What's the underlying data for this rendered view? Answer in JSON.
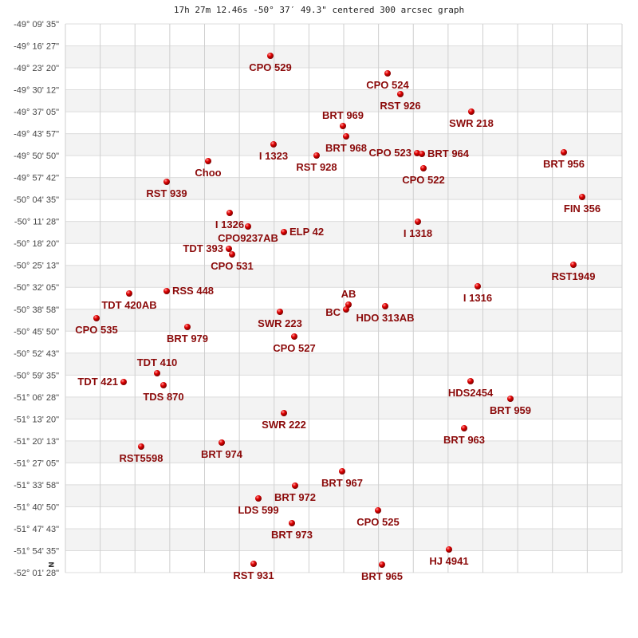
{
  "chart_data": {
    "type": "scatter",
    "title": "17h 27m 12.46s -50° 37′ 49.3\" centered 300 arcsec graph",
    "xlabel": "",
    "ylabel": "",
    "north_marker": "N",
    "grid": true,
    "x_units": "arcmin offset from center (east-west)",
    "y_units": "arcmin offset from center (north positive)",
    "y_tick_labels": [
      "-49° 09' 35\"",
      "-49° 16' 27\"",
      "-49° 23' 20\"",
      "-49° 30' 12\"",
      "-49° 37' 05\"",
      "-49° 43' 57\"",
      "-49° 50' 50\"",
      "-49° 57' 42\"",
      "-50° 04' 35\"",
      "-50° 11' 28\"",
      "-50° 18' 20\"",
      "-50° 25' 13\"",
      "-50° 32' 05\"",
      "-50° 38' 58\"",
      "-50° 45' 50\"",
      "-50° 52' 43\"",
      "-50° 59' 35\"",
      "-51° 06' 28\"",
      "-51° 13' 20\"",
      "-51° 20' 13\"",
      "-51° 27' 05\"",
      "-51° 33' 58\"",
      "-51° 40' 50\"",
      "-51° 47' 43\"",
      "-51° 54' 35\"",
      "-52° 01' 28\""
    ],
    "point_color": "#e00000",
    "label_color": "#8b0a0a",
    "points": [
      {
        "name": "CPO 529",
        "x": -23,
        "y": 78.25
      },
      {
        "name": "CPO 524",
        "x": 13.75,
        "y": 72.75
      },
      {
        "name": "RST 926",
        "x": 17.75,
        "y": 66.25
      },
      {
        "name": "SWR 218",
        "x": 40,
        "y": 60.75
      },
      {
        "name": "BRT 969",
        "x": -0.25,
        "y": 56.25
      },
      {
        "name": "BRT 968",
        "x": 0.75,
        "y": 53
      },
      {
        "name": "I  1323",
        "x": -22,
        "y": 50.5
      },
      {
        "name": "RST 928",
        "x": -8.5,
        "y": 47
      },
      {
        "name": "Choo",
        "x": -42.5,
        "y": 45.25
      },
      {
        "name": "CPO 523",
        "x": 23,
        "y": 47.75
      },
      {
        "name": "BRT 964",
        "x": 24.5,
        "y": 47.5
      },
      {
        "name": "BRT 956",
        "x": 69,
        "y": 48
      },
      {
        "name": "CPO 522",
        "x": 25,
        "y": 43
      },
      {
        "name": "RST 939",
        "x": -55.5,
        "y": 38.75
      },
      {
        "name": "FIN 356",
        "x": 74.75,
        "y": 34
      },
      {
        "name": "I  1326",
        "x": -35.75,
        "y": 29
      },
      {
        "name": "CPO9237AB",
        "x": -30,
        "y": 24.75
      },
      {
        "name": "ELP  42",
        "x": -18.75,
        "y": 23
      },
      {
        "name": "I  1318",
        "x": 23.25,
        "y": 26.25
      },
      {
        "name": "TDT 393",
        "x": -36,
        "y": 17.75
      },
      {
        "name": "CPO 531",
        "x": -35,
        "y": 16
      },
      {
        "name": "RST1949",
        "x": 72,
        "y": 12.75
      },
      {
        "name": "I  1316",
        "x": 42,
        "y": 6
      },
      {
        "name": "TDT 420AB",
        "x": -67.25,
        "y": 3.75
      },
      {
        "name": "RSS 448",
        "x": -55.5,
        "y": 4.5
      },
      {
        "name": "CPO 535",
        "x": -77.5,
        "y": -4
      },
      {
        "name": "BRT 979",
        "x": -49,
        "y": -6.75
      },
      {
        "name": "SWR 223",
        "x": -20,
        "y": -2
      },
      {
        "name": "CPO 527",
        "x": -15.5,
        "y": -9.75
      },
      {
        "name": "AB",
        "x": 1.5,
        "y": 0.25
      },
      {
        "name": "BC",
        "x": 0.75,
        "y": -1.25
      },
      {
        "name": "HDO 313AB",
        "x": 13,
        "y": -0.25
      },
      {
        "name": "TDT 421",
        "x": -69,
        "y": -24
      },
      {
        "name": "TDT 410",
        "x": -58.5,
        "y": -21.25
      },
      {
        "name": "TDS 870",
        "x": -56.5,
        "y": -25
      },
      {
        "name": "HDS2454",
        "x": 39.75,
        "y": -23.75
      },
      {
        "name": "BRT 959",
        "x": 52.25,
        "y": -29.25
      },
      {
        "name": "SWR 222",
        "x": -18.75,
        "y": -33.75
      },
      {
        "name": "BRT 963",
        "x": 37.75,
        "y": -38.5
      },
      {
        "name": "BRT 974",
        "x": -38.25,
        "y": -43
      },
      {
        "name": "RST5598",
        "x": -63.5,
        "y": -44.25
      },
      {
        "name": "BRT 967",
        "x": -0.5,
        "y": -52
      },
      {
        "name": "BRT 972",
        "x": -15.25,
        "y": -56.5
      },
      {
        "name": "LDS 599",
        "x": -26.75,
        "y": -60.5
      },
      {
        "name": "CPO 525",
        "x": 10.75,
        "y": -64.25
      },
      {
        "name": "BRT 973",
        "x": -16.25,
        "y": -68.25
      },
      {
        "name": "HJ 4941",
        "x": 33,
        "y": -76.5
      },
      {
        "name": "RST 931",
        "x": -28.25,
        "y": -81
      },
      {
        "name": "BRT 965",
        "x": 12,
        "y": -81.25
      }
    ]
  }
}
